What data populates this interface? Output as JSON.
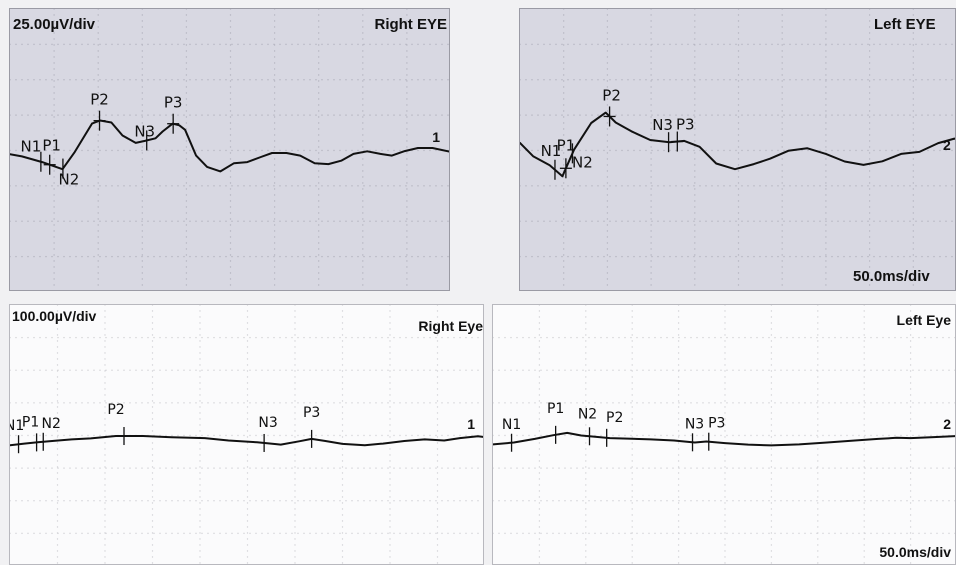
{
  "colors": {
    "trace": "#111111",
    "top_panel_bg": "#d8d8e2",
    "bottom_panel_bg": "#fbfbfc",
    "page_bg": "#f1f1f3"
  },
  "panels": {
    "top_right": {
      "eye": "Right EYE",
      "scale": "25.00µV/div",
      "channel": "1",
      "time_scale": ""
    },
    "top_left": {
      "eye": "Left EYE",
      "scale": "",
      "channel": "2",
      "time_scale": "50.0ms/div"
    },
    "bottom_right": {
      "eye": "Right Eye",
      "scale": "100.00µV/div",
      "channel": "1",
      "time_scale": ""
    },
    "bottom_left": {
      "eye": "Left Eye",
      "scale": "",
      "channel": "2",
      "time_scale": "50.0ms/div"
    }
  },
  "chart_data": [
    {
      "type": "line",
      "panel": "top_right",
      "title": "Right EYE",
      "y_scale": "25.00µV/div",
      "peaks": [
        "N1",
        "P1",
        "N2",
        "P2",
        "N3",
        "P3"
      ],
      "trace_norm": [
        [
          0,
          0.513
        ],
        [
          0.027,
          0.521
        ],
        [
          0.073,
          0.541
        ],
        [
          0.119,
          0.566
        ],
        [
          0.147,
          0.505
        ],
        [
          0.186,
          0.405
        ],
        [
          0.204,
          0.394
        ],
        [
          0.23,
          0.401
        ],
        [
          0.255,
          0.447
        ],
        [
          0.285,
          0.473
        ],
        [
          0.306,
          0.466
        ],
        [
          0.33,
          0.457
        ],
        [
          0.346,
          0.433
        ],
        [
          0.369,
          0.405
        ],
        [
          0.384,
          0.411
        ],
        [
          0.397,
          0.427
        ],
        [
          0.422,
          0.518
        ],
        [
          0.447,
          0.558
        ],
        [
          0.477,
          0.574
        ],
        [
          0.508,
          0.545
        ],
        [
          0.538,
          0.541
        ],
        [
          0.569,
          0.523
        ],
        [
          0.594,
          0.509
        ],
        [
          0.627,
          0.509
        ],
        [
          0.658,
          0.518
        ],
        [
          0.691,
          0.545
        ],
        [
          0.722,
          0.548
        ],
        [
          0.751,
          0.536
        ],
        [
          0.779,
          0.512
        ],
        [
          0.81,
          0.503
        ],
        [
          0.84,
          0.512
        ],
        [
          0.866,
          0.518
        ],
        [
          0.895,
          0.502
        ],
        [
          0.925,
          0.491
        ],
        [
          0.958,
          0.491
        ],
        [
          1,
          0.505
        ]
      ],
      "peak_norm": {
        "N1": 0.07,
        "P1": 0.09,
        "N2": 0.12,
        "P2": 0.203,
        "N3": 0.31,
        "P3": 0.37
      }
    },
    {
      "type": "line",
      "panel": "top_left",
      "title": "Left EYE",
      "x_scale": "50.0ms/div",
      "peaks": [
        "N1",
        "P1",
        "N2",
        "P2",
        "N3",
        "P3"
      ],
      "trace_norm": [
        [
          0,
          0.473
        ],
        [
          0.03,
          0.52
        ],
        [
          0.068,
          0.552
        ],
        [
          0.097,
          0.591
        ],
        [
          0.124,
          0.496
        ],
        [
          0.163,
          0.403
        ],
        [
          0.196,
          0.366
        ],
        [
          0.219,
          0.401
        ],
        [
          0.255,
          0.432
        ],
        [
          0.298,
          0.463
        ],
        [
          0.342,
          0.471
        ],
        [
          0.376,
          0.466
        ],
        [
          0.411,
          0.487
        ],
        [
          0.449,
          0.546
        ],
        [
          0.492,
          0.566
        ],
        [
          0.535,
          0.548
        ],
        [
          0.572,
          0.529
        ],
        [
          0.614,
          0.501
        ],
        [
          0.657,
          0.492
        ],
        [
          0.7,
          0.512
        ],
        [
          0.743,
          0.539
        ],
        [
          0.786,
          0.551
        ],
        [
          0.829,
          0.538
        ],
        [
          0.872,
          0.512
        ],
        [
          0.914,
          0.505
        ],
        [
          0.957,
          0.474
        ],
        [
          0.994,
          0.458
        ],
        [
          1,
          0.46
        ]
      ],
      "peak_norm": {
        "N1": 0.08,
        "P1": 0.105,
        "N2": 0.12,
        "P2": 0.205,
        "N3": 0.34,
        "P3": 0.36
      }
    },
    {
      "type": "line",
      "panel": "bottom_right",
      "title": "Right Eye",
      "y_scale": "100.00µV/div",
      "peaks": [
        "N1",
        "P1",
        "N2",
        "P2",
        "N3",
        "P3"
      ],
      "trace_norm": [
        [
          0,
          0.537
        ],
        [
          0.03,
          0.531
        ],
        [
          0.058,
          0.526
        ],
        [
          0.095,
          0.52
        ],
        [
          0.13,
          0.515
        ],
        [
          0.17,
          0.511
        ],
        [
          0.223,
          0.502
        ],
        [
          0.28,
          0.502
        ],
        [
          0.34,
          0.507
        ],
        [
          0.41,
          0.51
        ],
        [
          0.46,
          0.519
        ],
        [
          0.52,
          0.526
        ],
        [
          0.56,
          0.533
        ],
        [
          0.57,
          0.535
        ],
        [
          0.61,
          0.522
        ],
        [
          0.635,
          0.513
        ],
        [
          0.664,
          0.521
        ],
        [
          0.7,
          0.532
        ],
        [
          0.747,
          0.537
        ],
        [
          0.785,
          0.531
        ],
        [
          0.83,
          0.521
        ],
        [
          0.873,
          0.515
        ],
        [
          0.914,
          0.519
        ],
        [
          0.947,
          0.51
        ],
        [
          0.985,
          0.503
        ],
        [
          1,
          0.506
        ]
      ],
      "peak_norm": {
        "N1": 0.018,
        "P1": 0.056,
        "N2": 0.07,
        "P2": 0.24,
        "N3": 0.535,
        "P3": 0.635
      }
    },
    {
      "type": "line",
      "panel": "bottom_left",
      "title": "Left Eye",
      "x_scale": "50.0ms/div",
      "peaks": [
        "N1",
        "P1",
        "N2",
        "P2",
        "N3",
        "P3"
      ],
      "trace_norm": [
        [
          0,
          0.534
        ],
        [
          0.045,
          0.527
        ],
        [
          0.09,
          0.513
        ],
        [
          0.13,
          0.499
        ],
        [
          0.16,
          0.49
        ],
        [
          0.19,
          0.5
        ],
        [
          0.22,
          0.505
        ],
        [
          0.252,
          0.51
        ],
        [
          0.29,
          0.512
        ],
        [
          0.34,
          0.515
        ],
        [
          0.39,
          0.519
        ],
        [
          0.435,
          0.527
        ],
        [
          0.46,
          0.523
        ],
        [
          0.5,
          0.529
        ],
        [
          0.55,
          0.535
        ],
        [
          0.6,
          0.538
        ],
        [
          0.66,
          0.534
        ],
        [
          0.72,
          0.527
        ],
        [
          0.78,
          0.519
        ],
        [
          0.83,
          0.513
        ],
        [
          0.87,
          0.509
        ],
        [
          0.9,
          0.51
        ],
        [
          0.95,
          0.506
        ],
        [
          1,
          0.502
        ]
      ],
      "peak_norm": {
        "N1": 0.04,
        "P1": 0.135,
        "N2": 0.208,
        "P2": 0.245,
        "N3": 0.43,
        "P3": 0.465
      }
    }
  ]
}
